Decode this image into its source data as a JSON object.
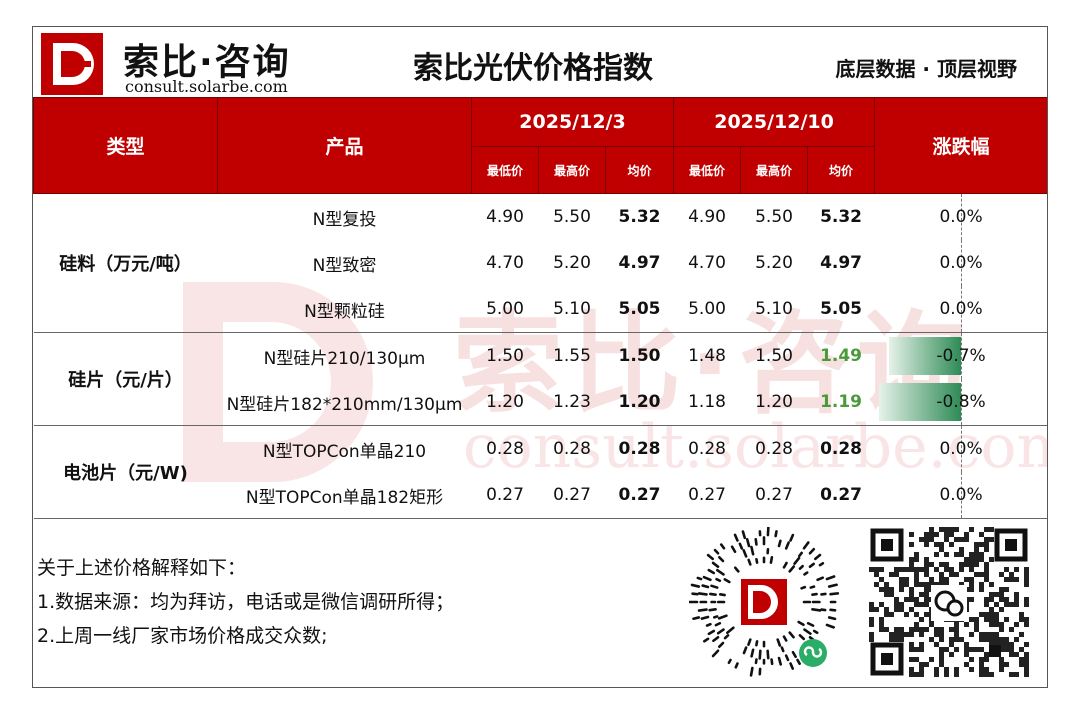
{
  "header": {
    "brand_name": "索比·咨询",
    "brand_domain": "consult.solarbe.com",
    "title": "索比光伏价格指数",
    "slogan": "底层数据 · 顶层视野",
    "logo_letter": "D"
  },
  "table": {
    "col_type": "类型",
    "col_product": "产品",
    "date1": "2025/12/3",
    "date2": "2025/12/10",
    "col_change": "涨跌幅",
    "sub_min": "最低价",
    "sub_max": "最高价",
    "sub_avg": "均价",
    "groups": [
      {
        "category": "硅料（万元/吨）",
        "rows": [
          {
            "product": "N型复投",
            "d1_min": "4.90",
            "d1_max": "5.50",
            "d1_avg": "5.32",
            "d2_min": "4.90",
            "d2_max": "5.50",
            "d2_avg": "5.32",
            "change": "0.0%",
            "change_value": 0.0
          },
          {
            "product": "N型致密",
            "d1_min": "4.70",
            "d1_max": "5.20",
            "d1_avg": "4.97",
            "d2_min": "4.70",
            "d2_max": "5.20",
            "d2_avg": "4.97",
            "change": "0.0%",
            "change_value": 0.0
          },
          {
            "product": "N型颗粒硅",
            "d1_min": "5.00",
            "d1_max": "5.10",
            "d1_avg": "5.05",
            "d2_min": "5.00",
            "d2_max": "5.10",
            "d2_avg": "5.05",
            "change": "0.0%",
            "change_value": 0.0
          }
        ]
      },
      {
        "category": "硅片（元/片）",
        "rows": [
          {
            "product": "N型硅片210/130μm",
            "d1_min": "1.50",
            "d1_max": "1.55",
            "d1_avg": "1.50",
            "d2_min": "1.48",
            "d2_max": "1.50",
            "d2_avg": "1.49",
            "change": "-0.7%",
            "change_value": -0.7
          },
          {
            "product": "N型硅片182*210mm/130μm",
            "d1_min": "1.20",
            "d1_max": "1.23",
            "d1_avg": "1.20",
            "d2_min": "1.18",
            "d2_max": "1.20",
            "d2_avg": "1.19",
            "change": "-0.8%",
            "change_value": -0.8
          }
        ]
      },
      {
        "category": "电池片（元/W)",
        "rows": [
          {
            "product": "N型TOPCon单晶210",
            "d1_min": "0.28",
            "d1_max": "0.28",
            "d1_avg": "0.28",
            "d2_min": "0.28",
            "d2_max": "0.28",
            "d2_avg": "0.28",
            "change": "0.0%",
            "change_value": 0.0
          },
          {
            "product": "N型TOPCon单晶182矩形",
            "d1_min": "0.27",
            "d1_max": "0.27",
            "d1_avg": "0.27",
            "d2_min": "0.27",
            "d2_max": "0.27",
            "d2_avg": "0.27",
            "change": "0.0%",
            "change_value": 0.0
          }
        ]
      }
    ]
  },
  "notes": {
    "heading": "关于上述价格解释如下：",
    "line1": "1.数据来源：均为拜访，电话或是微信调研所得；",
    "line2": "2.上周一线厂家市场价格成交众数;"
  },
  "colors": {
    "brand_red": "#c00000",
    "decrease_green": "#4a9a3a"
  },
  "icons": {
    "logo": "solarbe-d-logo-icon",
    "miniprogram_qr": "wechat-miniprogram-qr-icon",
    "wechat_qr": "wechat-qr-code-icon"
  }
}
